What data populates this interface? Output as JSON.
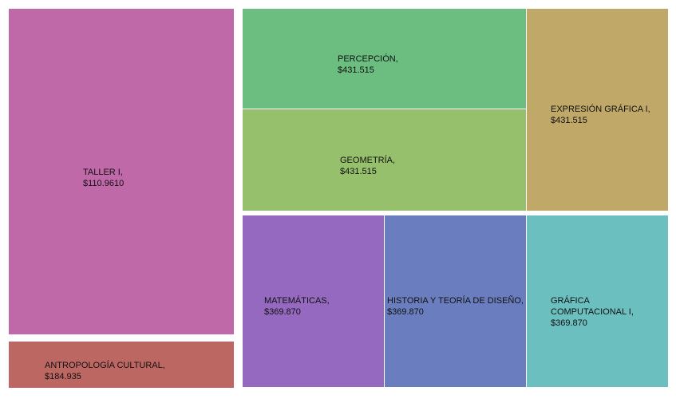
{
  "chart_data": {
    "type": "treemap",
    "items": [
      {
        "label": "TALLER I,",
        "value_text": "$110.9610",
        "color": "#bf69a8"
      },
      {
        "label": "ANTROPOLOGÍA CULTURAL,",
        "value_text": "$184.935",
        "color": "#bd6763"
      },
      {
        "label": "PERCEPCIÓN,",
        "value_text": "$431.515",
        "color": "#6bbe80"
      },
      {
        "label": "GEOMETRÍA,",
        "value_text": "$431.515",
        "color": "#96c06b"
      },
      {
        "label": "EXPRESIÓN GRÁFICA I,",
        "value_text": "$431.515",
        "color": "#c0a869"
      },
      {
        "label": "MATEMÁTICAS,",
        "value_text": "$369.870",
        "color": "#9469bf"
      },
      {
        "label": "HISTORIA Y TEORÍA DE DISEÑO,",
        "value_text": "$369.870",
        "color": "#6a7ebf"
      },
      {
        "label": "GRÁFICA COMPUTACIONAL I,",
        "value_text": "$369.870",
        "color": "#6bbfbf"
      }
    ]
  }
}
